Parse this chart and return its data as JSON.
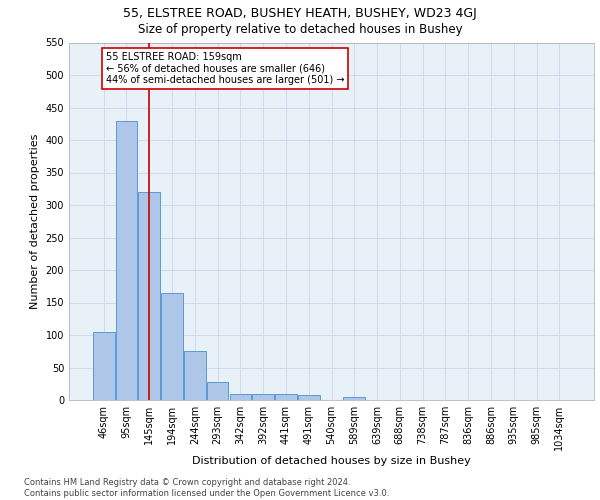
{
  "title_line1": "55, ELSTREE ROAD, BUSHEY HEATH, BUSHEY, WD23 4GJ",
  "title_line2": "Size of property relative to detached houses in Bushey",
  "xlabel": "Distribution of detached houses by size in Bushey",
  "ylabel": "Number of detached properties",
  "bar_values": [
    105,
    430,
    320,
    165,
    75,
    27,
    10,
    10,
    10,
    7,
    0,
    4,
    0,
    0,
    0,
    0,
    0,
    0,
    0,
    0,
    0
  ],
  "bin_labels": [
    "46sqm",
    "95sqm",
    "145sqm",
    "194sqm",
    "244sqm",
    "293sqm",
    "342sqm",
    "392sqm",
    "441sqm",
    "491sqm",
    "540sqm",
    "589sqm",
    "639sqm",
    "688sqm",
    "738sqm",
    "787sqm",
    "836sqm",
    "886sqm",
    "935sqm",
    "985sqm",
    "1034sqm"
  ],
  "bar_color": "#aec6e8",
  "bar_edge_color": "#5b9bd5",
  "vline_x": 2,
  "vline_color": "#cc0000",
  "annotation_text": "55 ELSTREE ROAD: 159sqm\n← 56% of detached houses are smaller (646)\n44% of semi-detached houses are larger (501) →",
  "annotation_box_color": "#ffffff",
  "annotation_box_edge": "#cc0000",
  "ylim": [
    0,
    550
  ],
  "yticks": [
    0,
    50,
    100,
    150,
    200,
    250,
    300,
    350,
    400,
    450,
    500,
    550
  ],
  "grid_color": "#c8d8e8",
  "background_color": "#e8f0f8",
  "footer_text": "Contains HM Land Registry data © Crown copyright and database right 2024.\nContains public sector information licensed under the Open Government Licence v3.0.",
  "title_fontsize": 9,
  "subtitle_fontsize": 8.5,
  "axis_label_fontsize": 8,
  "tick_fontsize": 7,
  "annotation_fontsize": 7,
  "footer_fontsize": 6
}
